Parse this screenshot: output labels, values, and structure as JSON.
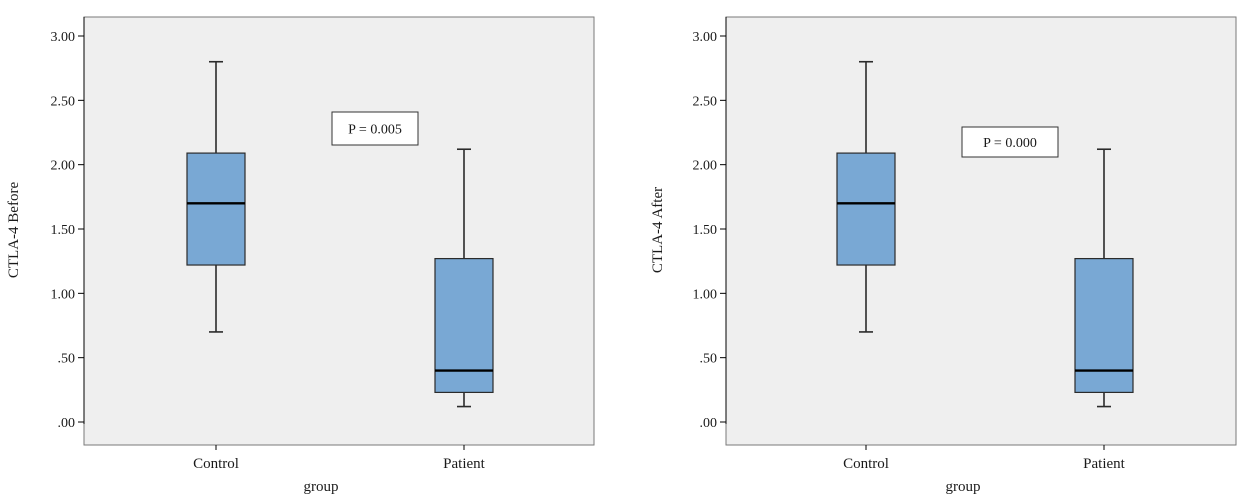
{
  "colors": {
    "plot_background": "#efefef",
    "box_fill": "#79a8d4",
    "box_stroke": "#2b2b2b",
    "median": "#000000",
    "axis": "#000000"
  },
  "chart_data": [
    {
      "type": "boxplot",
      "xlabel": "group",
      "ylabel": "CTLA-4 Before",
      "ylim": [
        -0.1,
        3.15
      ],
      "yticks": [
        0,
        0.5,
        1,
        1.5,
        2,
        2.5,
        3
      ],
      "ytick_labels": [
        ".00",
        ".50",
        "1.00",
        "1.50",
        "2.00",
        "2.50",
        "3.00"
      ],
      "categories": [
        "Control",
        "Patient"
      ],
      "boxes": [
        {
          "whisker_low": 0.7,
          "q1": 1.22,
          "median": 1.7,
          "q3": 2.09,
          "whisker_high": 2.8
        },
        {
          "whisker_low": 0.12,
          "q1": 0.23,
          "median": 0.4,
          "q3": 1.27,
          "whisker_high": 2.12
        }
      ],
      "annotation": "P = 0.005",
      "grid": false,
      "legend": "none"
    },
    {
      "type": "boxplot",
      "xlabel": "group",
      "ylabel": "CTLA-4 After",
      "ylim": [
        -0.1,
        3.15
      ],
      "yticks": [
        0,
        0.5,
        1,
        1.5,
        2,
        2.5,
        3
      ],
      "ytick_labels": [
        ".00",
        ".50",
        "1.00",
        "1.50",
        "2.00",
        "2.50",
        "3.00"
      ],
      "categories": [
        "Control",
        "Patient"
      ],
      "boxes": [
        {
          "whisker_low": 0.7,
          "q1": 1.22,
          "median": 1.7,
          "q3": 2.09,
          "whisker_high": 2.8
        },
        {
          "whisker_low": 0.12,
          "q1": 0.23,
          "median": 0.4,
          "q3": 1.27,
          "whisker_high": 2.12
        }
      ],
      "annotation": "P = 0.000",
      "grid": false,
      "legend": "none"
    }
  ]
}
